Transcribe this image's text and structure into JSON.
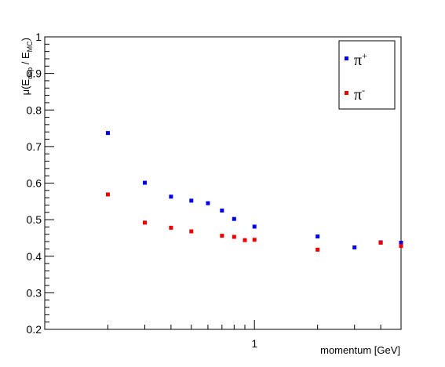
{
  "chart_data": {
    "type": "scatter",
    "title": "",
    "xlabel": "momentum [GeV]",
    "ylabel_parts": {
      "open": "μ(E",
      "sub1": "dep",
      "mid": " / E",
      "sub2": "MC",
      "close": ")"
    },
    "x_scale": "log",
    "xlim": [
      0.1,
      5
    ],
    "ylim": [
      0.2,
      1
    ],
    "y_ticks": [
      0.2,
      0.3,
      0.4,
      0.5,
      0.6,
      0.7,
      0.8,
      0.9,
      1
    ],
    "y_tick_labels": [
      "0.2",
      "0.3",
      "0.4",
      "0.5",
      "0.6",
      "0.7",
      "0.8",
      "0.9",
      "1"
    ],
    "x_major_ticks": [
      1
    ],
    "x_tick_labels": [
      "1"
    ],
    "legend_position": "top-right",
    "grid": false,
    "series": [
      {
        "name_base": "π",
        "name_sup": "+",
        "color": "#0000ee",
        "points": [
          {
            "x": 0.2,
            "y": 0.737
          },
          {
            "x": 0.3,
            "y": 0.601
          },
          {
            "x": 0.4,
            "y": 0.563
          },
          {
            "x": 0.5,
            "y": 0.552
          },
          {
            "x": 0.6,
            "y": 0.545
          },
          {
            "x": 0.7,
            "y": 0.525
          },
          {
            "x": 0.8,
            "y": 0.502
          },
          {
            "x": 1.0,
            "y": 0.481
          },
          {
            "x": 2.0,
            "y": 0.454
          },
          {
            "x": 3.0,
            "y": 0.424
          },
          {
            "x": 4.0,
            "y": 0.438
          },
          {
            "x": 5.0,
            "y": 0.437
          }
        ]
      },
      {
        "name_base": "π",
        "name_sup": "-",
        "color": "#ee0000",
        "points": [
          {
            "x": 0.2,
            "y": 0.569
          },
          {
            "x": 0.3,
            "y": 0.492
          },
          {
            "x": 0.4,
            "y": 0.478
          },
          {
            "x": 0.5,
            "y": 0.468
          },
          {
            "x": 0.7,
            "y": 0.456
          },
          {
            "x": 0.8,
            "y": 0.453
          },
          {
            "x": 0.9,
            "y": 0.444
          },
          {
            "x": 1.0,
            "y": 0.445
          },
          {
            "x": 2.0,
            "y": 0.418
          },
          {
            "x": 4.0,
            "y": 0.437
          },
          {
            "x": 5.0,
            "y": 0.428
          }
        ]
      }
    ]
  }
}
